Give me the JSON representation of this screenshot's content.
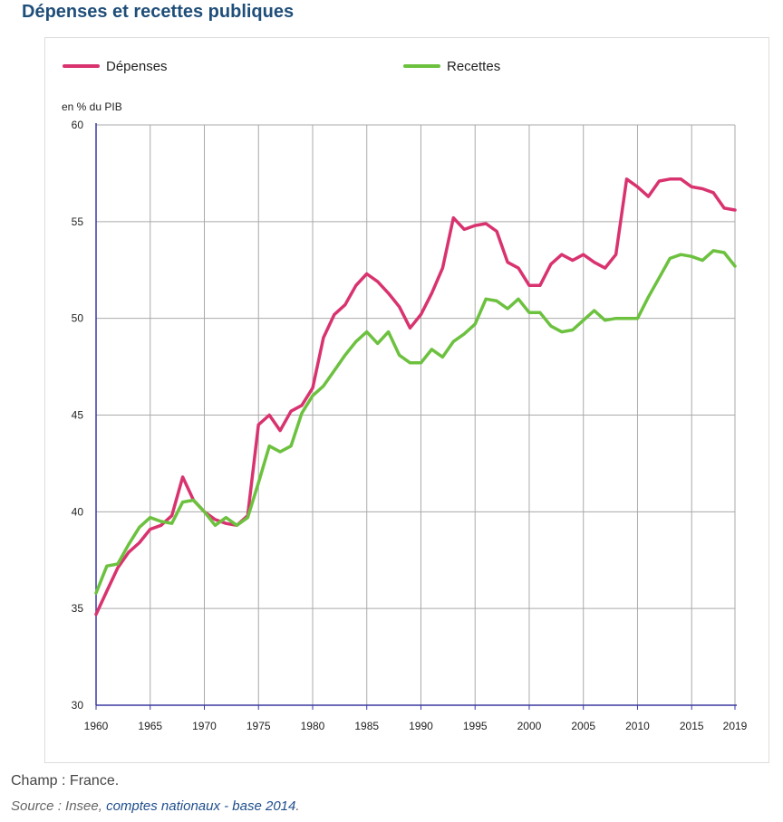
{
  "title": "Dépenses et recettes publiques",
  "footnote": {
    "champ": "Champ : France.",
    "source_prefix": "Source : Insee, ",
    "source_link": "comptes nationaux - base 2014",
    "source_suffix": "."
  },
  "colors": {
    "depenses": "#d9336f",
    "recettes": "#6cc13f",
    "axis": "#3a3aa0",
    "grid": "#aaaaaa",
    "title": "#1f4e79"
  },
  "chart_data": {
    "type": "line",
    "ylabel": "en % du PIB",
    "xlabel": "",
    "ylim": [
      30,
      60
    ],
    "xlim": [
      1960,
      2019
    ],
    "yticks": [
      "30",
      "35",
      "40",
      "45",
      "50",
      "55",
      "60"
    ],
    "xticks": [
      "1960",
      "1965",
      "1970",
      "1975",
      "1980",
      "1985",
      "1990",
      "1995",
      "2000",
      "2005",
      "2010",
      "2015",
      "2019"
    ],
    "grid": true,
    "legend_position": "top",
    "x": [
      1960,
      1961,
      1962,
      1963,
      1964,
      1965,
      1966,
      1967,
      1968,
      1969,
      1970,
      1971,
      1972,
      1973,
      1974,
      1975,
      1976,
      1977,
      1978,
      1979,
      1980,
      1981,
      1982,
      1983,
      1984,
      1985,
      1986,
      1987,
      1988,
      1989,
      1990,
      1991,
      1992,
      1993,
      1994,
      1995,
      1996,
      1997,
      1998,
      1999,
      2000,
      2001,
      2002,
      2003,
      2004,
      2005,
      2006,
      2007,
      2008,
      2009,
      2010,
      2011,
      2012,
      2013,
      2014,
      2015,
      2016,
      2017,
      2018,
      2019
    ],
    "series": [
      {
        "name": "Dépenses",
        "color": "#d9336f",
        "values": [
          34.7,
          35.9,
          37.1,
          37.9,
          38.4,
          39.1,
          39.3,
          39.8,
          41.8,
          40.6,
          40.0,
          39.6,
          39.4,
          39.3,
          39.8,
          44.5,
          45.0,
          44.2,
          45.2,
          45.5,
          46.4,
          49.0,
          50.2,
          50.7,
          51.7,
          52.3,
          51.9,
          51.3,
          50.6,
          49.5,
          50.2,
          51.3,
          52.6,
          55.2,
          54.6,
          54.8,
          54.9,
          54.5,
          52.9,
          52.6,
          51.7,
          51.7,
          52.8,
          53.3,
          53.0,
          53.3,
          52.9,
          52.6,
          53.3,
          57.2,
          56.8,
          56.3,
          57.1,
          57.2,
          57.2,
          56.8,
          56.7,
          56.5,
          55.7,
          55.6
        ]
      },
      {
        "name": "Recettes",
        "color": "#6cc13f",
        "values": [
          35.8,
          37.2,
          37.3,
          38.3,
          39.2,
          39.7,
          39.5,
          39.4,
          40.5,
          40.6,
          40.0,
          39.3,
          39.7,
          39.3,
          39.7,
          41.5,
          43.4,
          43.1,
          43.4,
          45.1,
          46.0,
          46.5,
          47.3,
          48.1,
          48.8,
          49.3,
          48.7,
          49.3,
          48.1,
          47.7,
          47.7,
          48.4,
          48.0,
          48.8,
          49.2,
          49.7,
          51.0,
          50.9,
          50.5,
          51.0,
          50.3,
          50.3,
          49.6,
          49.3,
          49.4,
          49.9,
          50.4,
          49.9,
          50.0,
          50.0,
          50.0,
          51.1,
          52.1,
          53.1,
          53.3,
          53.2,
          53.0,
          53.5,
          53.4,
          52.7
        ]
      }
    ]
  }
}
